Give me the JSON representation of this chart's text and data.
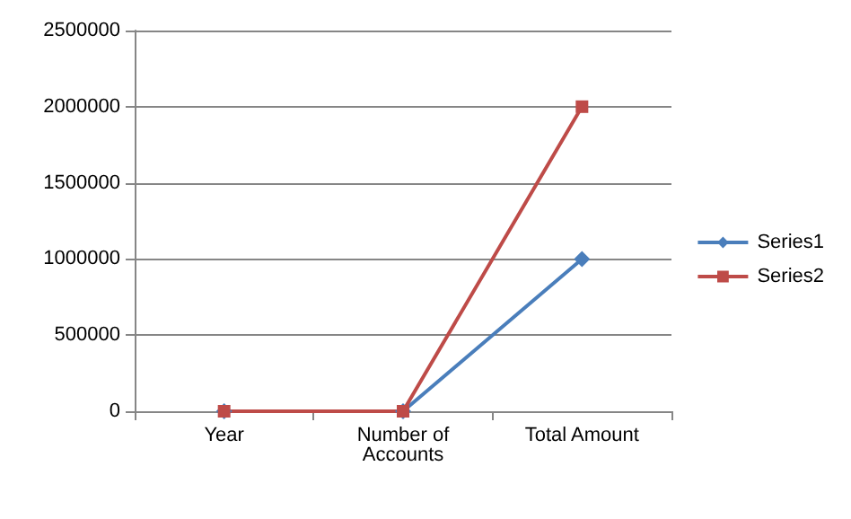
{
  "chart_data": {
    "type": "line",
    "categories": [
      "Year",
      "Number of\nAccounts",
      "Total Amount"
    ],
    "series": [
      {
        "name": "Series1",
        "color": "#4a7ebb",
        "marker": "diamond",
        "values": [
          0,
          0,
          1000000
        ]
      },
      {
        "name": "Series2",
        "color": "#be4b48",
        "marker": "square",
        "values": [
          0,
          0,
          2000000
        ]
      }
    ],
    "ylim": [
      0,
      2500000
    ],
    "yticks": [
      0,
      500000,
      1000000,
      1500000,
      2000000,
      2500000
    ],
    "grid": "y",
    "legend": "right",
    "line_style": "solid"
  }
}
